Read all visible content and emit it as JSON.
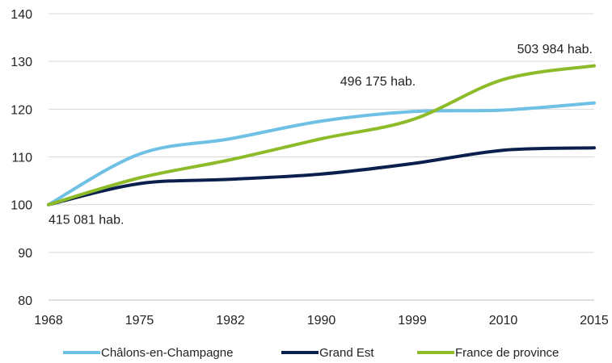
{
  "chart_data": {
    "type": "line",
    "categories": [
      "1968",
      "1975",
      "1982",
      "1990",
      "1999",
      "2010",
      "2015"
    ],
    "ylim": [
      80,
      140
    ],
    "yticks": [
      80,
      90,
      100,
      110,
      120,
      130,
      140
    ],
    "grid": true,
    "legend_position": "bottom",
    "series": [
      {
        "name": "Châlons-en-Champagne",
        "color": "#6ec1e4",
        "values": [
          100,
          110.6,
          113.8,
          117.5,
          119.5,
          119.8,
          121.3
        ]
      },
      {
        "name": "Grand Est",
        "color": "#0b1f4d",
        "values": [
          100,
          104.4,
          105.3,
          106.4,
          108.6,
          111.4,
          111.9
        ]
      },
      {
        "name": "France de province",
        "color": "#8dbb2a",
        "values": [
          100,
          105.6,
          109.4,
          113.8,
          117.8,
          126.2,
          129.1
        ]
      }
    ],
    "annotations": [
      {
        "text": "415 081 hab.",
        "x": "1968",
        "y": 97
      },
      {
        "text": "496 175 hab.",
        "x": "1990",
        "y": 126
      },
      {
        "text": "503 984 hab.",
        "x": "2015",
        "y": 132.7
      }
    ]
  }
}
